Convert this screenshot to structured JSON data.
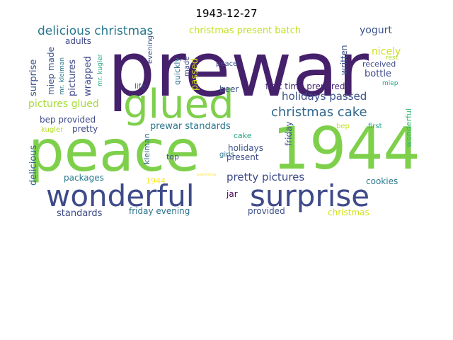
{
  "title": "1943-12-27",
  "words": [
    {
      "text": "prewar",
      "color": "#45206b"
    },
    {
      "text": "peace",
      "color": "#7ed04b"
    },
    {
      "text": "1944",
      "color": "#7ed04b"
    },
    {
      "text": "glued",
      "color": "#7ed04b"
    },
    {
      "text": "wonderful",
      "color": "#3e4a89"
    },
    {
      "text": "surprise",
      "color": "#3e4a89"
    },
    {
      "text": "delicious christmas",
      "color": "#2a788e"
    },
    {
      "text": "christmas cake",
      "color": "#31688e"
    },
    {
      "text": "holidays passed",
      "color": "#3b528b"
    },
    {
      "text": "pretty pictures",
      "color": "#3e4a89"
    },
    {
      "text": "pictures glued",
      "color": "#a5db36"
    },
    {
      "text": "prewar standards",
      "color": "#2a788e"
    },
    {
      "text": "christmas present batch",
      "color": "#c2df23"
    },
    {
      "text": "yogurt",
      "color": "#3b528b"
    },
    {
      "text": "nicely",
      "color": "#d2e21b"
    },
    {
      "text": "bottle",
      "color": "#3e4a89"
    },
    {
      "text": "received",
      "color": "#3e4a89"
    },
    {
      "text": "rest",
      "color": "#b5de2b"
    },
    {
      "text": "miep",
      "color": "#22a884"
    },
    {
      "text": "first time prepared",
      "color": "#482677"
    },
    {
      "text": "beer",
      "color": "#3b528b"
    },
    {
      "text": "life",
      "color": "#3e4a89"
    },
    {
      "text": "peace",
      "color": "#3b528b"
    },
    {
      "text": "adults",
      "color": "#3e4a89"
    },
    {
      "text": "bep provided",
      "color": "#3e4a89"
    },
    {
      "text": "pretty",
      "color": "#3e4a89"
    },
    {
      "text": "cake",
      "color": "#22a884"
    },
    {
      "text": "holidays",
      "color": "#3b528b"
    },
    {
      "text": "present",
      "color": "#3e4a89"
    },
    {
      "text": "girls",
      "color": "#2c728e"
    },
    {
      "text": "top",
      "color": "#3b528b"
    },
    {
      "text": "1944",
      "color": "#fde725"
    },
    {
      "text": "packages",
      "color": "#2a788e"
    },
    {
      "text": "jar",
      "color": "#440154"
    },
    {
      "text": "cookies",
      "color": "#2a788e"
    },
    {
      "text": "standards",
      "color": "#3e4a89"
    },
    {
      "text": "friday evening",
      "color": "#2c728e"
    },
    {
      "text": "provided",
      "color": "#3b528b"
    },
    {
      "text": "christmas",
      "color": "#d2e21b"
    },
    {
      "text": "bep",
      "color": "#c2df23"
    },
    {
      "text": "first",
      "color": "#20a386"
    },
    {
      "text": "kugler",
      "color": "#b5de2b"
    },
    {
      "text": "surprise",
      "color": "#3b528b"
    },
    {
      "text": "miep made",
      "color": "#3b528b"
    },
    {
      "text": "mr. kleiman",
      "color": "#2a788e"
    },
    {
      "text": "pictures",
      "color": "#3e4a89"
    },
    {
      "text": "wrapped",
      "color": "#3e4a89"
    },
    {
      "text": "mr. kugler",
      "color": "#22a884"
    },
    {
      "text": "evening",
      "color": "#3b528b"
    },
    {
      "text": "quickly",
      "color": "#2c728e"
    },
    {
      "text": "made",
      "color": "#3e4a89"
    },
    {
      "text": "passed",
      "color": "#d2e21b"
    },
    {
      "text": "written",
      "color": "#3b528b"
    },
    {
      "text": "friday",
      "color": "#3b528b"
    },
    {
      "text": "wonderful",
      "color": "#35b779"
    },
    {
      "text": "delicious",
      "color": "#31688e"
    },
    {
      "text": "kleiman",
      "color": "#31688e"
    },
    {
      "text": "everything",
      "color": "#fde725"
    }
  ]
}
